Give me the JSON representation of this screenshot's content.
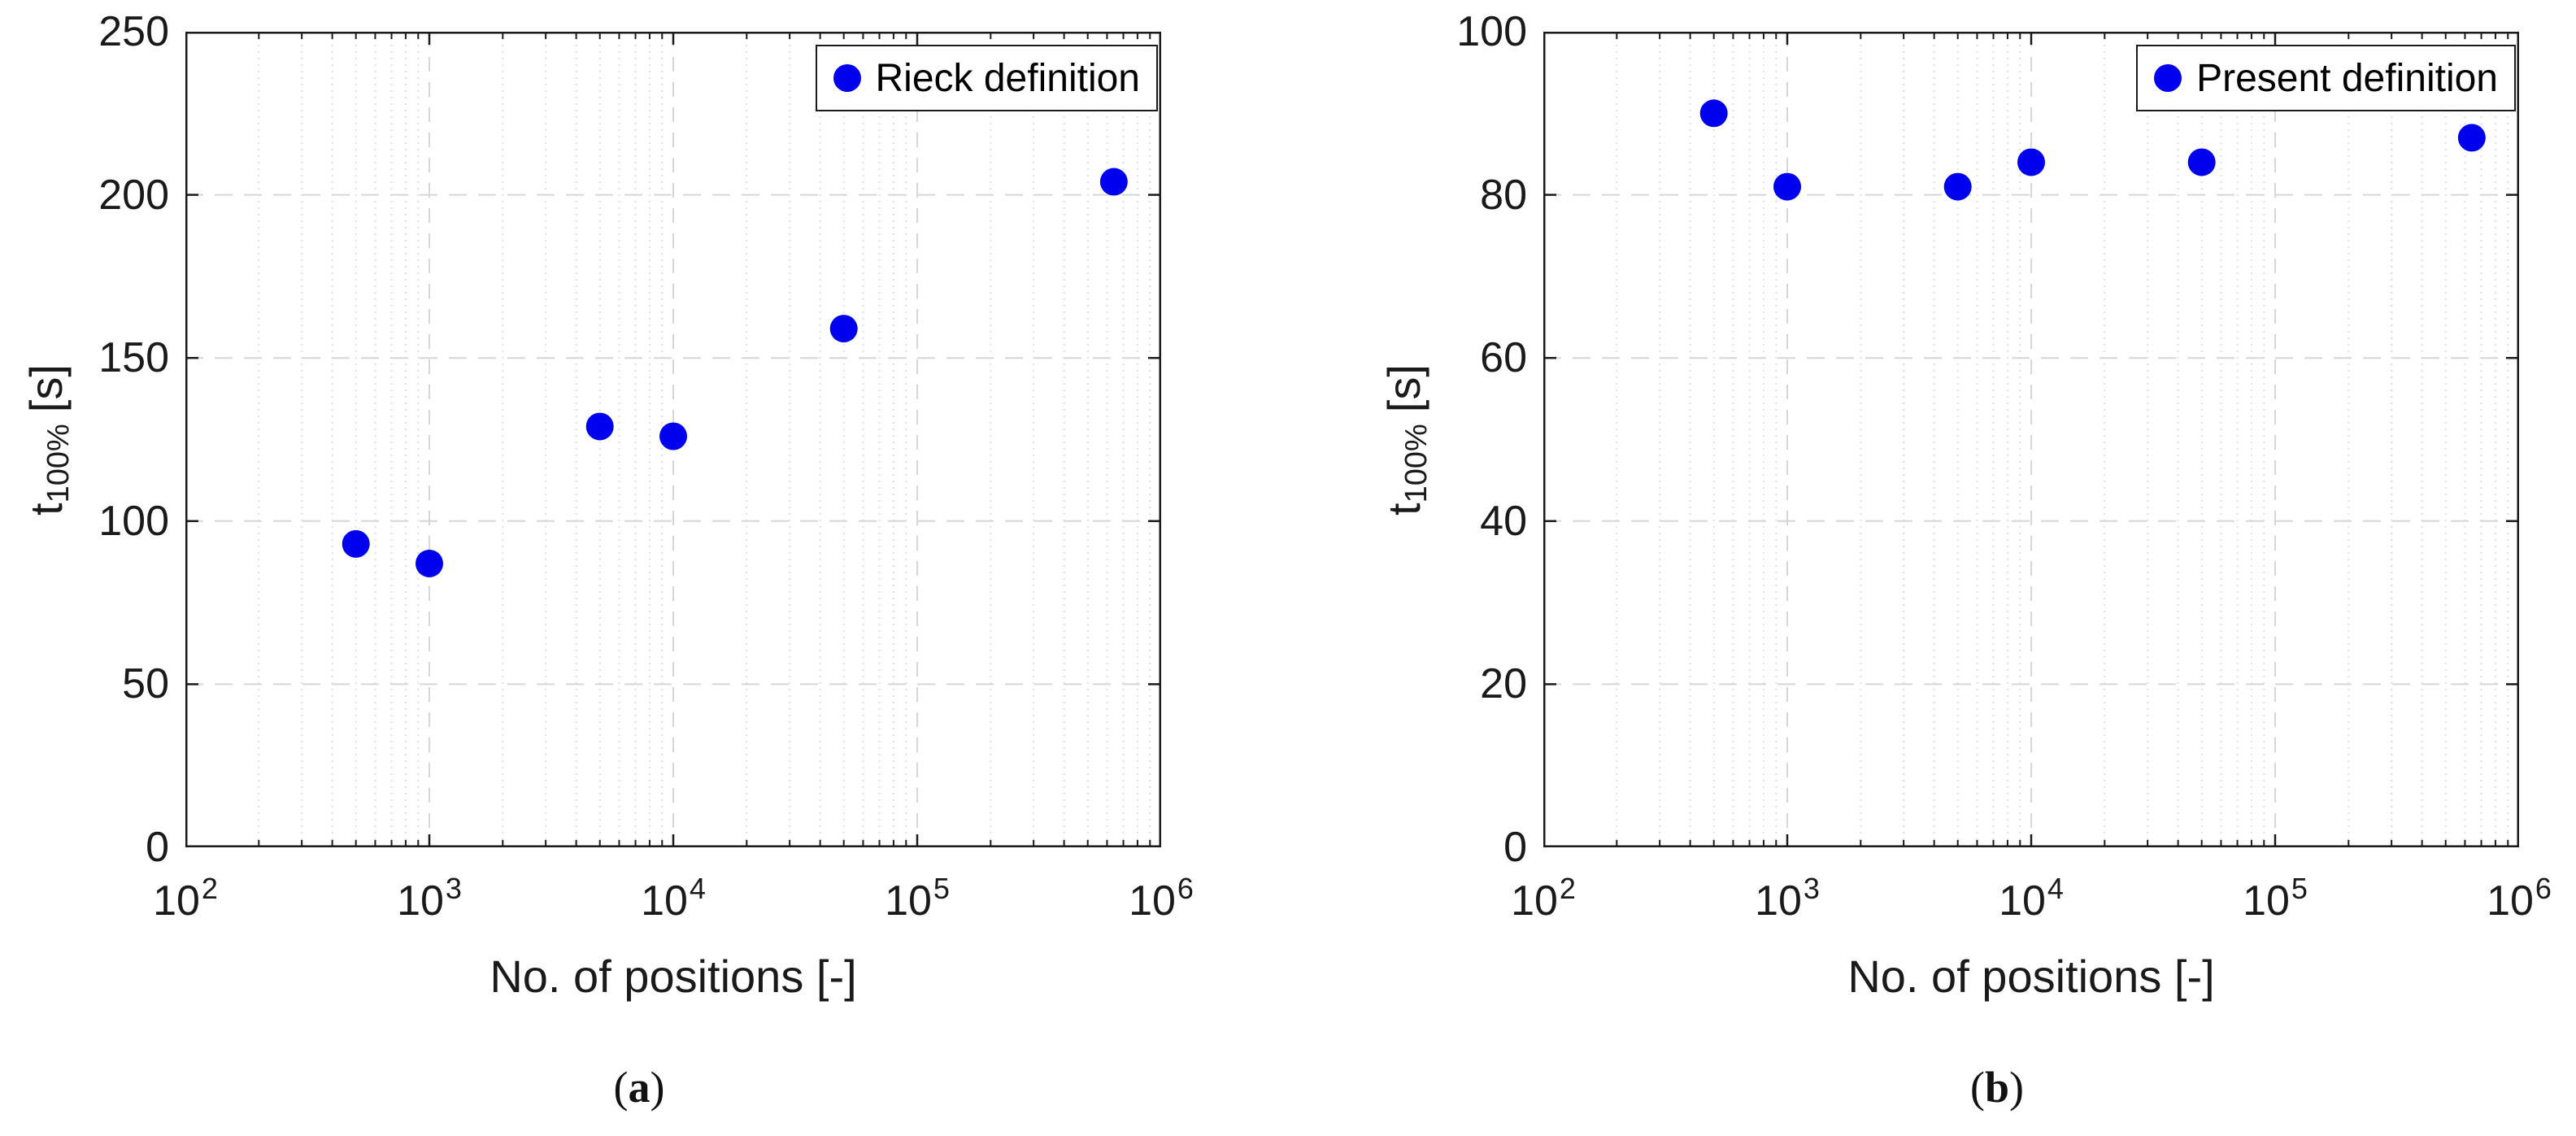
{
  "style": {
    "background": "#ffffff",
    "axis_color": "#1a1a1a",
    "grid_major_color": "#d6d6d6",
    "grid_minor_color": "#e0e0e0",
    "marker_color": "#0000ee"
  },
  "chart_data": [
    {
      "id": "a",
      "type": "scatter",
      "legend": "Rieck definition",
      "legend_position": "top-right",
      "xlabel": "No. of positions [-]",
      "ylabel": {
        "main": "t",
        "sub": "100%",
        "unit": "[s]"
      },
      "caption": {
        "open": "(",
        "letter": "a",
        "close": ")"
      },
      "x_scale": "log",
      "grid": true,
      "x": [
        500,
        1000,
        5000,
        10000,
        50000,
        640000
      ],
      "y": [
        93,
        87,
        129,
        126,
        159,
        204
      ],
      "xlim": [
        100,
        1000000
      ],
      "ylim": [
        0,
        250
      ],
      "yticks": [
        {
          "v": 0,
          "label": "0"
        },
        {
          "v": 50,
          "label": "50"
        },
        {
          "v": 100,
          "label": "100"
        },
        {
          "v": 150,
          "label": "150"
        },
        {
          "v": 200,
          "label": "200"
        },
        {
          "v": 250,
          "label": "250"
        }
      ],
      "xticks": [
        {
          "m": "10",
          "e": "2"
        },
        {
          "m": "10",
          "e": "3"
        },
        {
          "m": "10",
          "e": "4"
        },
        {
          "m": "10",
          "e": "5"
        },
        {
          "m": "10",
          "e": "6"
        }
      ],
      "marker_color": "#0000ee"
    },
    {
      "id": "b",
      "type": "scatter",
      "legend": "Present definition",
      "legend_position": "top-right",
      "xlabel": "No. of positions [-]",
      "ylabel": {
        "main": "t",
        "sub": "100%",
        "unit": "[s]"
      },
      "caption": {
        "open": "(",
        "letter": "b",
        "close": ")"
      },
      "x_scale": "log",
      "grid": true,
      "x": [
        500,
        1000,
        5000,
        10000,
        50000,
        640000
      ],
      "y": [
        90,
        81,
        81,
        84,
        84,
        87
      ],
      "xlim": [
        100,
        1000000
      ],
      "ylim": [
        0,
        100
      ],
      "yticks": [
        {
          "v": 0,
          "label": "0"
        },
        {
          "v": 20,
          "label": "20"
        },
        {
          "v": 40,
          "label": "40"
        },
        {
          "v": 60,
          "label": "60"
        },
        {
          "v": 80,
          "label": "80"
        },
        {
          "v": 100,
          "label": "100"
        }
      ],
      "xticks": [
        {
          "m": "10",
          "e": "2"
        },
        {
          "m": "10",
          "e": "3"
        },
        {
          "m": "10",
          "e": "4"
        },
        {
          "m": "10",
          "e": "5"
        },
        {
          "m": "10",
          "e": "6"
        }
      ],
      "marker_color": "#0000ee"
    }
  ]
}
